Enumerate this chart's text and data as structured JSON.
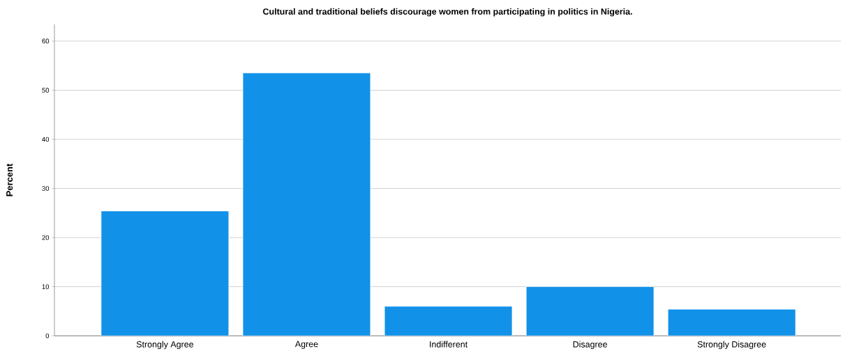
{
  "chart_data": {
    "type": "bar",
    "title": "Cultural and traditional beliefs discourage women from participating in politics in Nigeria.",
    "ylabel": "Percent",
    "categories": [
      "Strongly Agree",
      "Agree",
      "Indifferent",
      "Disagree",
      "Strongly Disagree"
    ],
    "values": [
      25.4,
      53.5,
      6.0,
      10.0,
      5.4
    ],
    "color": "#1191e8",
    "ylim": [
      0,
      63.4
    ],
    "yticks": [
      0,
      10,
      20,
      30,
      40,
      50,
      60
    ],
    "grid": "y"
  }
}
